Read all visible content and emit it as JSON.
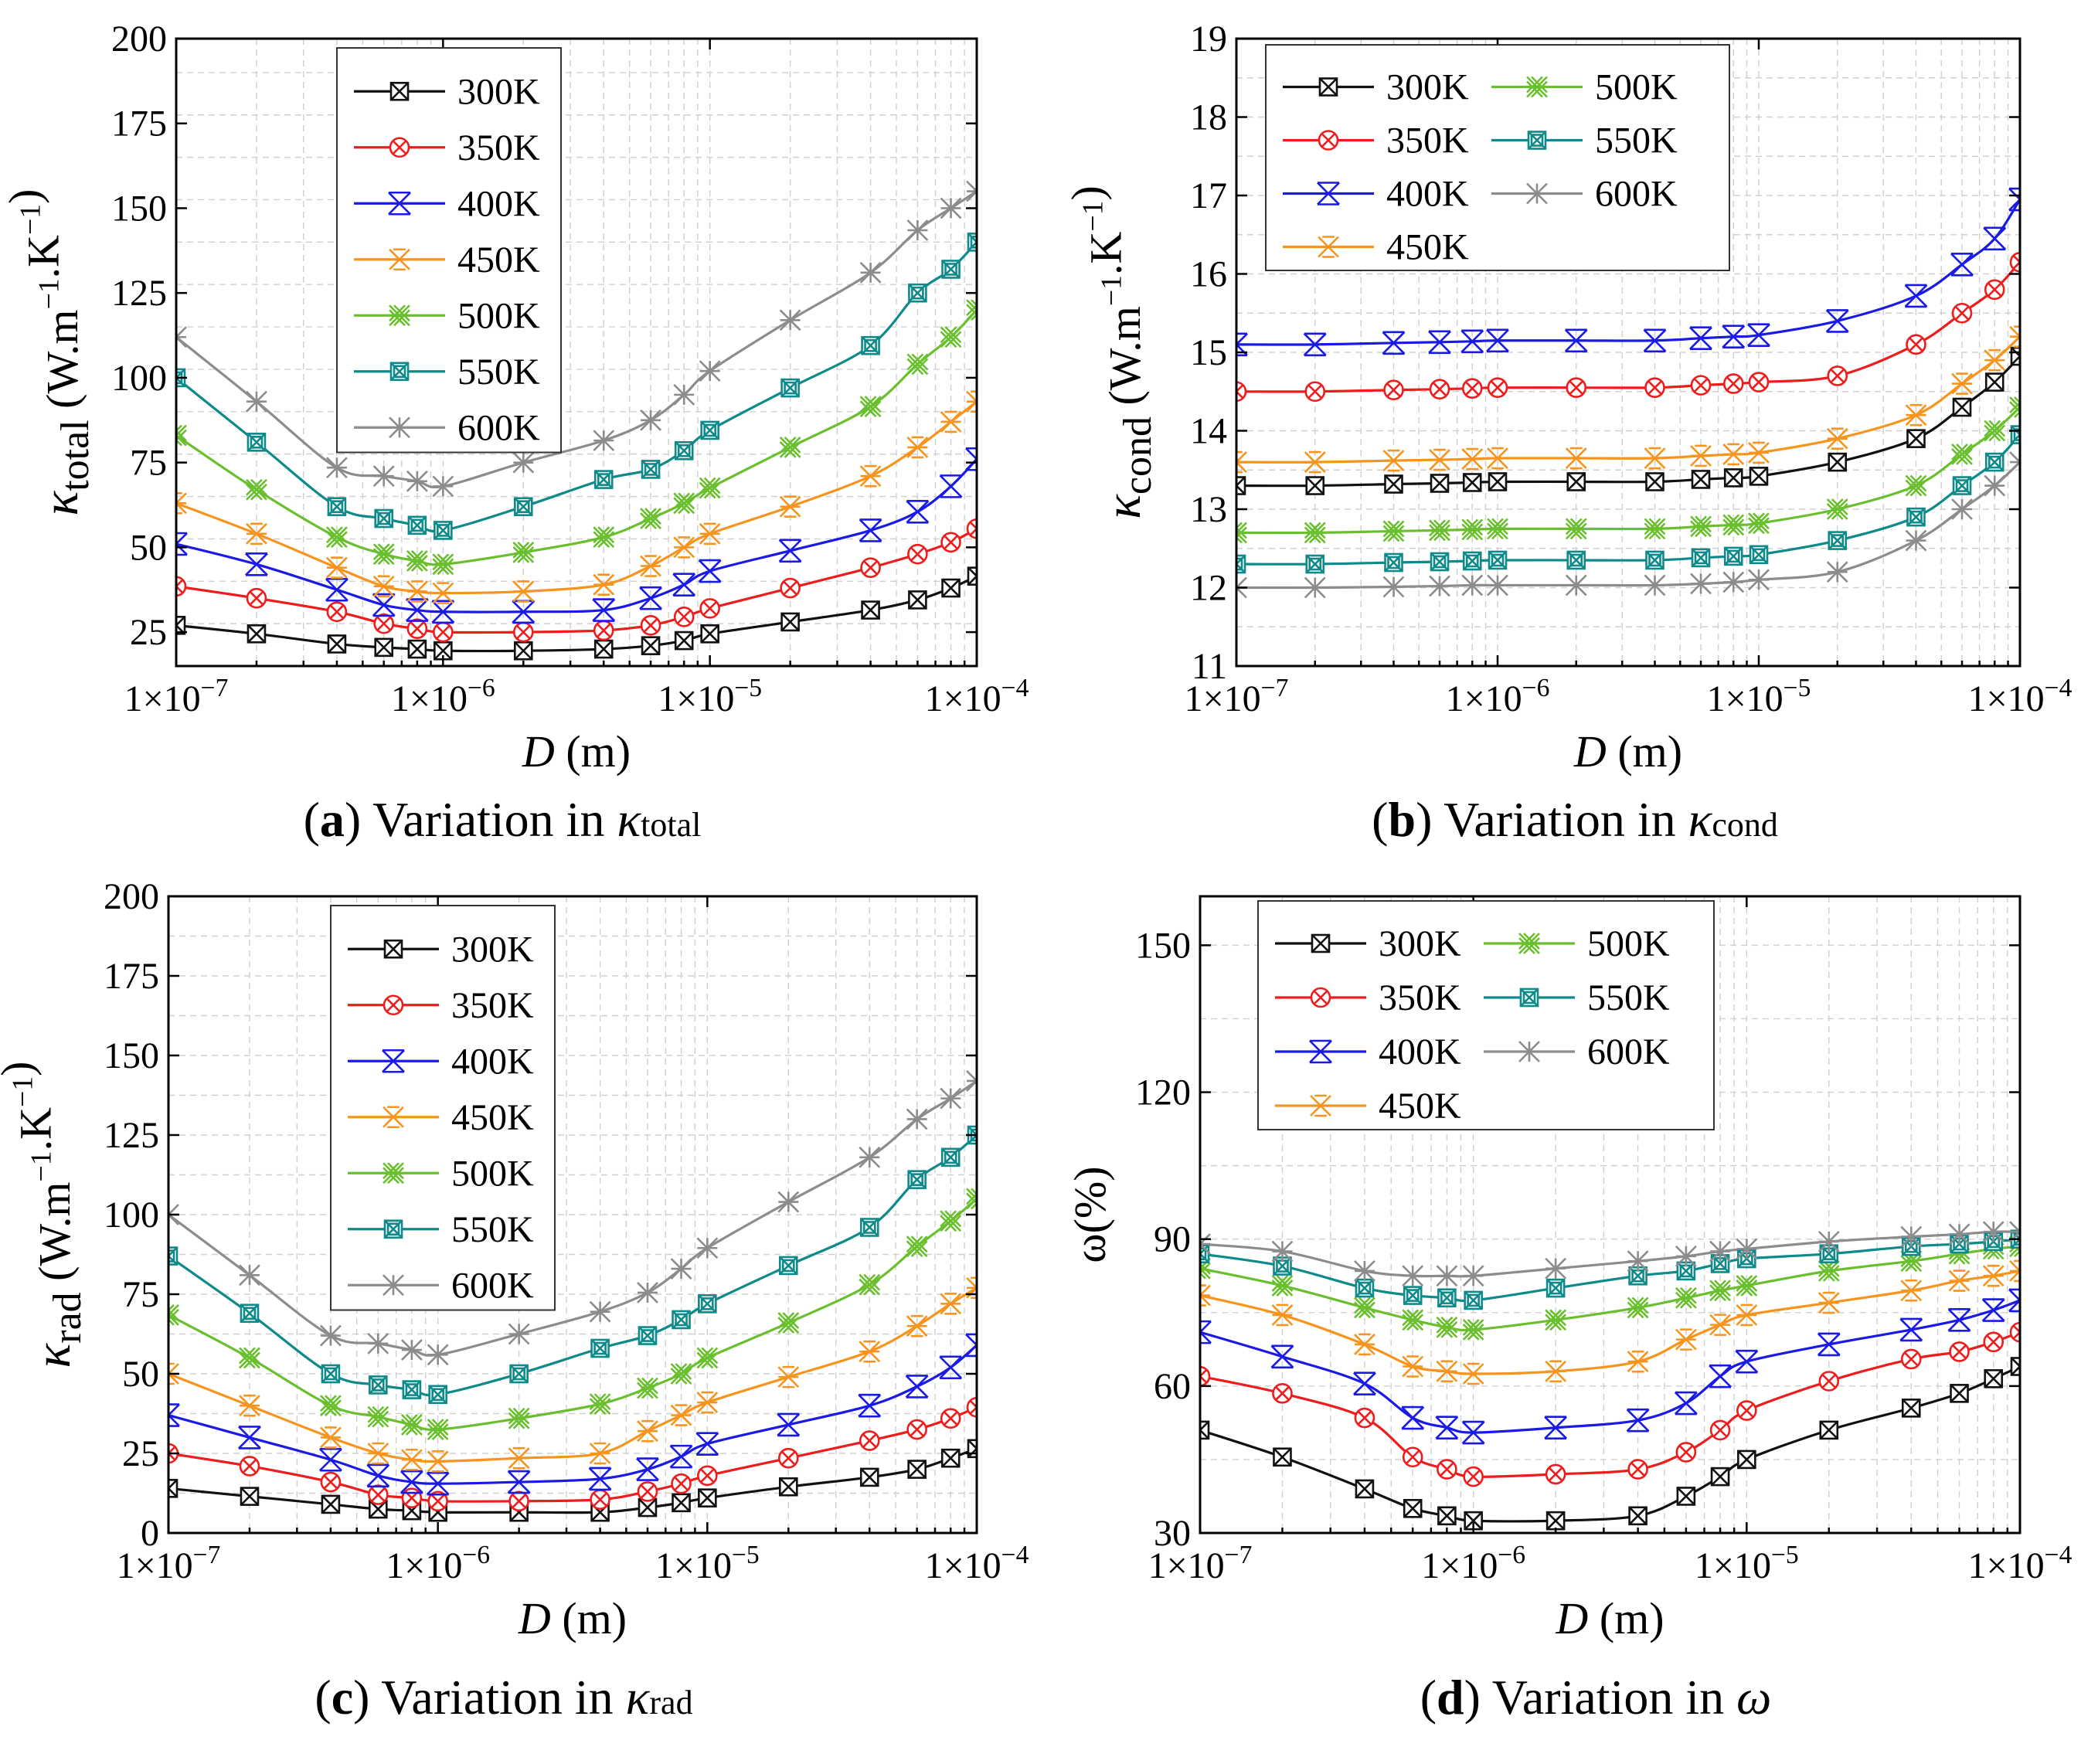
{
  "chart_data": [
    {
      "type": "line",
      "panel_letter": "a",
      "caption_text": "Variation in",
      "caption_symbol": "κ",
      "caption_sub": "total",
      "ylabel_symbol": "κ",
      "ylabel_sub": "total",
      "ylabel_unit": "(W.m−1.K−1)",
      "xlabel_symbol": "D",
      "xlabel_unit": "(m)",
      "xscale": "log",
      "xlim": [
        1e-07,
        0.0001
      ],
      "ylim": [
        15,
        200
      ],
      "xticks": [
        1e-07,
        1e-06,
        1e-05,
        0.0001
      ],
      "xtick_labels": [
        "1×10−7",
        "1×10−6",
        "1×10−5",
        "1×10−4"
      ],
      "yticks": [
        25,
        50,
        75,
        100,
        125,
        150,
        175,
        200
      ],
      "ytick_labels": [
        "25",
        "50",
        "75",
        "100",
        "125",
        "150",
        "175",
        "200"
      ],
      "grid": true,
      "legend_location": "top-left",
      "legend_columns": 1,
      "x": [
        1e-07,
        2e-07,
        4e-07,
        6e-07,
        8e-07,
        1e-06,
        2e-06,
        4e-06,
        6e-06,
        8e-06,
        1e-05,
        2e-05,
        4e-05,
        6e-05,
        8e-05,
        0.0001
      ],
      "series": [
        {
          "name": "300K",
          "color": "#111111",
          "marker": "boxx",
          "values": [
            27,
            24.5,
            21.5,
            20.5,
            20,
            19.5,
            19.5,
            20,
            21,
            22.5,
            24.5,
            28,
            31.5,
            34.5,
            38,
            41.5
          ]
        },
        {
          "name": "350K",
          "color": "#ee1c1c",
          "marker": "circx",
          "values": [
            38.5,
            35,
            31,
            27.5,
            26,
            25,
            25,
            25.5,
            27,
            29.5,
            32,
            38,
            44,
            48,
            51.5,
            55.5
          ]
        },
        {
          "name": "400K",
          "color": "#1a1ae6",
          "marker": "triX",
          "values": [
            51,
            45,
            37.5,
            33,
            31.5,
            31,
            31,
            31.5,
            35,
            39,
            43,
            49,
            55,
            60.5,
            68,
            76
          ]
        },
        {
          "name": "450K",
          "color": "#f7941d",
          "marker": "star",
          "values": [
            63,
            54,
            44,
            38.5,
            37,
            36.5,
            37,
            39,
            44.5,
            50,
            54,
            62,
            71,
            79.5,
            87,
            93
          ]
        },
        {
          "name": "500K",
          "color": "#6abf2e",
          "marker": "dblx",
          "values": [
            83,
            67,
            53,
            48,
            46,
            45,
            48.5,
            53,
            58.5,
            63,
            67.5,
            79.5,
            91.5,
            104,
            112,
            120
          ]
        },
        {
          "name": "550K",
          "color": "#0e8a8a",
          "marker": "sqbox",
          "values": [
            100,
            81,
            62,
            58.5,
            56.5,
            55,
            62,
            70,
            73,
            78.5,
            84.5,
            97,
            109.5,
            125,
            132,
            140
          ]
        },
        {
          "name": "600K",
          "color": "#8c8c8c",
          "marker": "astx",
          "values": [
            112,
            93,
            73.5,
            71,
            69.5,
            68,
            75,
            81.5,
            87.5,
            95,
            102,
            117,
            131,
            143.5,
            150,
            155
          ]
        }
      ]
    },
    {
      "type": "line",
      "panel_letter": "b",
      "caption_text": "Variation in",
      "caption_symbol": "κ",
      "caption_sub": "cond",
      "ylabel_symbol": "κ",
      "ylabel_sub": "cond",
      "ylabel_unit": "(W.m−1.K−1)",
      "xlabel_symbol": "D",
      "xlabel_unit": "(m)",
      "xscale": "log",
      "xlim": [
        1e-07,
        0.0001
      ],
      "ylim": [
        11,
        19
      ],
      "xticks": [
        1e-07,
        1e-06,
        1e-05,
        0.0001
      ],
      "xtick_labels": [
        "1×10−7",
        "1×10−6",
        "1×10−5",
        "1×10−4"
      ],
      "yticks": [
        11,
        12,
        13,
        14,
        15,
        16,
        17,
        18,
        19
      ],
      "ytick_labels": [
        "11",
        "12",
        "13",
        "14",
        "15",
        "16",
        "17",
        "18",
        "19"
      ],
      "grid": true,
      "legend_location": "top-left",
      "legend_columns": 2,
      "x": [
        1e-07,
        2e-07,
        4e-07,
        6e-07,
        8e-07,
        1e-06,
        2e-06,
        4e-06,
        6e-06,
        8e-06,
        1e-05,
        2e-05,
        4e-05,
        6e-05,
        8e-05,
        0.0001
      ],
      "series": [
        {
          "name": "300K",
          "color": "#111111",
          "marker": "boxx",
          "values": [
            13.3,
            13.3,
            13.32,
            13.33,
            13.34,
            13.35,
            13.35,
            13.35,
            13.38,
            13.4,
            13.42,
            13.6,
            13.9,
            14.3,
            14.62,
            14.95
          ]
        },
        {
          "name": "350K",
          "color": "#ee1c1c",
          "marker": "circx",
          "values": [
            14.5,
            14.5,
            14.52,
            14.53,
            14.54,
            14.55,
            14.55,
            14.55,
            14.58,
            14.6,
            14.62,
            14.7,
            15.1,
            15.5,
            15.8,
            16.15
          ]
        },
        {
          "name": "400K",
          "color": "#1a1ae6",
          "marker": "triX",
          "values": [
            15.1,
            15.1,
            15.12,
            15.13,
            15.14,
            15.15,
            15.15,
            15.15,
            15.18,
            15.2,
            15.22,
            15.4,
            15.72,
            16.12,
            16.45,
            16.95
          ]
        },
        {
          "name": "450K",
          "color": "#f7941d",
          "marker": "star",
          "values": [
            13.6,
            13.6,
            13.62,
            13.63,
            13.64,
            13.65,
            13.65,
            13.65,
            13.68,
            13.7,
            13.72,
            13.9,
            14.2,
            14.6,
            14.9,
            15.2
          ]
        },
        {
          "name": "500K",
          "color": "#6abf2e",
          "marker": "dblx",
          "values": [
            12.7,
            12.7,
            12.72,
            12.73,
            12.74,
            12.75,
            12.75,
            12.75,
            12.78,
            12.8,
            12.82,
            13.0,
            13.3,
            13.7,
            14.0,
            14.3
          ]
        },
        {
          "name": "550K",
          "color": "#0e8a8a",
          "marker": "sqbox",
          "values": [
            12.3,
            12.3,
            12.32,
            12.33,
            12.34,
            12.35,
            12.35,
            12.35,
            12.38,
            12.4,
            12.42,
            12.6,
            12.9,
            13.3,
            13.6,
            13.95
          ]
        },
        {
          "name": "600K",
          "color": "#8c8c8c",
          "marker": "astx",
          "values": [
            12.0,
            12.0,
            12.01,
            12.02,
            12.03,
            12.03,
            12.03,
            12.03,
            12.05,
            12.07,
            12.1,
            12.2,
            12.6,
            13.0,
            13.3,
            13.6
          ]
        }
      ]
    },
    {
      "type": "line",
      "panel_letter": "c",
      "caption_text": "Variation in",
      "caption_symbol": "κ",
      "caption_sub": "rad",
      "ylabel_symbol": "κ",
      "ylabel_sub": "rad",
      "ylabel_unit": "(W.m−1.K−1)",
      "xlabel_symbol": "D",
      "xlabel_unit": "(m)",
      "xscale": "log",
      "xlim": [
        1e-07,
        0.0001
      ],
      "ylim": [
        0,
        200
      ],
      "xticks": [
        1e-07,
        1e-06,
        1e-05,
        0.0001
      ],
      "xtick_labels": [
        "1×10−7",
        "1×10−6",
        "1×10−5",
        "1×10−4"
      ],
      "yticks": [
        0,
        25,
        50,
        75,
        100,
        125,
        150,
        175,
        200
      ],
      "ytick_labels": [
        "0",
        "25",
        "50",
        "75",
        "100",
        "125",
        "150",
        "175",
        "200"
      ],
      "grid": true,
      "legend_location": "top-left",
      "legend_columns": 1,
      "x": [
        1e-07,
        2e-07,
        4e-07,
        6e-07,
        8e-07,
        1e-06,
        2e-06,
        4e-06,
        6e-06,
        8e-06,
        1e-05,
        2e-05,
        4e-05,
        6e-05,
        8e-05,
        0.0001
      ],
      "series": [
        {
          "name": "300K",
          "color": "#111111",
          "marker": "boxx",
          "values": [
            14,
            11.5,
            9,
            7.5,
            7,
            6.5,
            6.5,
            6.5,
            8,
            9.5,
            11,
            14.5,
            17.5,
            20,
            23.5,
            26.5
          ]
        },
        {
          "name": "350K",
          "color": "#ee1c1c",
          "marker": "circx",
          "values": [
            25,
            21,
            16,
            12,
            11,
            10,
            10,
            10.5,
            13,
            15.5,
            18,
            23.5,
            29,
            32.5,
            36,
            39.5
          ]
        },
        {
          "name": "400K",
          "color": "#1a1ae6",
          "marker": "triX",
          "values": [
            37,
            30,
            23,
            18,
            16,
            15.5,
            16,
            17,
            20,
            24,
            28,
            34,
            40,
            46,
            52,
            59
          ]
        },
        {
          "name": "450K",
          "color": "#f7941d",
          "marker": "star",
          "values": [
            50,
            40,
            30,
            25,
            23,
            22.5,
            23.5,
            25,
            32,
            37,
            41,
            49,
            57,
            65,
            72,
            77
          ]
        },
        {
          "name": "500K",
          "color": "#6abf2e",
          "marker": "dblx",
          "values": [
            68.5,
            55,
            40,
            36.5,
            34,
            32.5,
            36,
            40.5,
            45.5,
            50,
            55,
            66,
            78,
            90,
            98,
            105
          ]
        },
        {
          "name": "550K",
          "color": "#0e8a8a",
          "marker": "sqbox",
          "values": [
            87,
            69,
            50,
            46.5,
            45,
            43.5,
            50,
            58,
            62,
            67,
            72,
            84,
            96,
            111,
            118,
            125
          ]
        },
        {
          "name": "600K",
          "color": "#8c8c8c",
          "marker": "astx",
          "values": [
            100,
            81,
            62,
            59.5,
            57.5,
            56,
            62.5,
            69.5,
            75.5,
            83,
            89.5,
            104,
            118,
            130,
            136.5,
            142
          ]
        }
      ]
    },
    {
      "type": "line",
      "panel_letter": "d",
      "caption_text": "Variation in",
      "caption_symbol": "ω",
      "caption_sub": "",
      "ylabel_symbol": "ω(%)",
      "ylabel_sub": "",
      "ylabel_unit": "",
      "xlabel_symbol": "D",
      "xlabel_unit": "(m)",
      "xscale": "log",
      "xlim": [
        1e-07,
        0.0001
      ],
      "ylim": [
        30,
        160
      ],
      "xticks": [
        1e-07,
        1e-06,
        1e-05,
        0.0001
      ],
      "xtick_labels": [
        "1×10−7",
        "1×10−6",
        "1×10−5",
        "1×10−4"
      ],
      "yticks": [
        30,
        60,
        90,
        120,
        150
      ],
      "ytick_labels": [
        "30",
        "60",
        "90",
        "120",
        "150"
      ],
      "grid": true,
      "legend_location": "top-left",
      "legend_columns": 2,
      "x": [
        1e-07,
        2e-07,
        4e-07,
        6e-07,
        8e-07,
        1e-06,
        2e-06,
        4e-06,
        6e-06,
        8e-06,
        1e-05,
        2e-05,
        4e-05,
        6e-05,
        8e-05,
        0.0001
      ],
      "series": [
        {
          "name": "300K",
          "color": "#111111",
          "marker": "boxx",
          "values": [
            51,
            45.5,
            39,
            35,
            33.5,
            32.5,
            32.5,
            33.5,
            37.5,
            41.5,
            45,
            51,
            55.5,
            58.5,
            61.5,
            64
          ]
        },
        {
          "name": "350K",
          "color": "#ee1c1c",
          "marker": "circx",
          "values": [
            62,
            58.5,
            53.5,
            45.5,
            43,
            41.5,
            42,
            43,
            46.5,
            51,
            55,
            61,
            65.5,
            67,
            69,
            71
          ]
        },
        {
          "name": "400K",
          "color": "#1a1ae6",
          "marker": "triX",
          "values": [
            71,
            66,
            60.5,
            53.5,
            51.5,
            50.5,
            51.5,
            53,
            56.5,
            62,
            65,
            68.5,
            71.5,
            73.5,
            75.5,
            77.5
          ]
        },
        {
          "name": "450K",
          "color": "#f7941d",
          "marker": "star",
          "values": [
            78.5,
            74.5,
            68.5,
            64,
            63,
            62.5,
            63,
            65,
            69.5,
            72.5,
            74.5,
            77,
            79.5,
            81.5,
            82.5,
            83.5
          ]
        },
        {
          "name": "500K",
          "color": "#6abf2e",
          "marker": "dblx",
          "values": [
            84,
            80.5,
            76,
            73.5,
            72,
            71.5,
            73.5,
            76,
            78,
            79.5,
            80.5,
            83.5,
            85.5,
            87,
            88,
            88.5
          ]
        },
        {
          "name": "550K",
          "color": "#0e8a8a",
          "marker": "sqbox",
          "values": [
            87,
            84.5,
            80,
            78.5,
            78,
            77.5,
            80,
            82.5,
            83.5,
            85,
            86,
            87,
            88.5,
            89,
            89.5,
            90
          ]
        },
        {
          "name": "600K",
          "color": "#8c8c8c",
          "marker": "astx",
          "values": [
            89,
            87.5,
            83.5,
            82.5,
            82.5,
            82.5,
            84,
            85.5,
            86.5,
            87.5,
            88,
            89.5,
            90.5,
            91,
            91.5,
            91.5
          ]
        }
      ]
    }
  ]
}
